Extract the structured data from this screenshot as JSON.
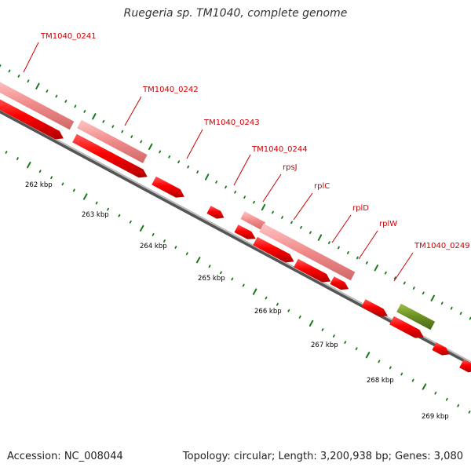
{
  "title": "Ruegeria sp. TM1040, complete genome",
  "footer": {
    "accession": "Accession: NC_008044",
    "stats": "Topology: circular; Length: 3,200,938 bp; Genes: 3,080"
  },
  "colors": {
    "gene_red": "#ee0000",
    "gene_pink": "#f08a8a",
    "gene_green": "#6b8e23",
    "tick_green": "#1a7a1a",
    "label_red": "#cc0000",
    "backbone": "#8c8c8c"
  },
  "gene_labels": [
    "TM1040_0241",
    "TM1040_0242",
    "TM1040_0243",
    "TM1040_0244",
    "rpsJ",
    "rplC",
    "rplD",
    "rplW",
    "TM1040_0249"
  ],
  "kbp_labels": [
    "262 kbp",
    "263 kbp",
    "264 kbp",
    "265 kbp",
    "266 kbp",
    "267 kbp",
    "268 kbp",
    "269 kbp"
  ]
}
